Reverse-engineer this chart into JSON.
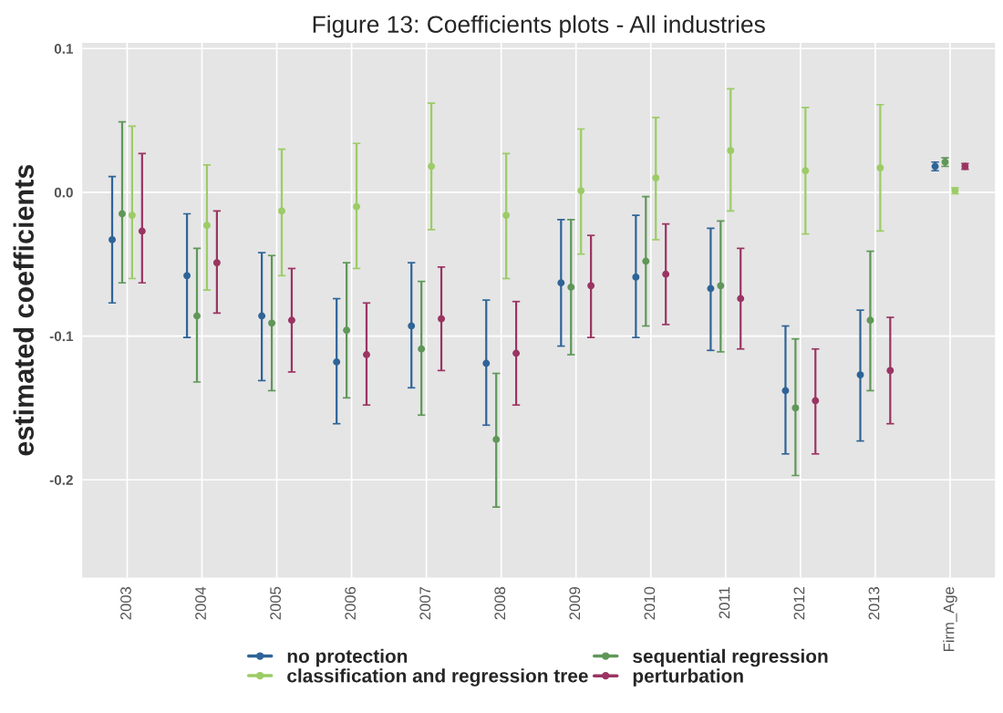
{
  "chart_data": {
    "type": "scatter",
    "title": "Figure 13: Coefficients plots - All industries",
    "ylabel": "estimated coefficients",
    "categories": [
      "2003",
      "2004",
      "2005",
      "2006",
      "2007",
      "2008",
      "2009",
      "2010",
      "2011",
      "2012",
      "2013",
      "Firm_Age"
    ],
    "series": [
      {
        "name": "no protection",
        "color": "#2f6497",
        "values": [
          -0.033,
          -0.058,
          -0.086,
          -0.118,
          -0.093,
          -0.119,
          -0.063,
          -0.059,
          -0.067,
          -0.138,
          -0.127,
          0.018
        ],
        "errors": [
          [
            -0.077,
            0.011
          ],
          [
            -0.101,
            -0.015
          ],
          [
            -0.131,
            -0.042
          ],
          [
            -0.161,
            -0.074
          ],
          [
            -0.136,
            -0.049
          ],
          [
            -0.162,
            -0.075
          ],
          [
            -0.107,
            -0.019
          ],
          [
            -0.101,
            -0.016
          ],
          [
            -0.11,
            -0.025
          ],
          [
            -0.182,
            -0.093
          ],
          [
            -0.173,
            -0.082
          ],
          [
            0.015,
            0.021
          ]
        ]
      },
      {
        "name": "sequential regression",
        "color": "#5f9758",
        "values": [
          -0.015,
          -0.086,
          -0.091,
          -0.096,
          -0.109,
          -0.172,
          -0.066,
          -0.048,
          -0.065,
          -0.15,
          -0.089,
          0.021
        ],
        "errors": [
          [
            -0.063,
            0.049
          ],
          [
            -0.132,
            -0.039
          ],
          [
            -0.138,
            -0.044
          ],
          [
            -0.143,
            -0.049
          ],
          [
            -0.155,
            -0.062
          ],
          [
            -0.219,
            -0.126
          ],
          [
            -0.113,
            -0.019
          ],
          [
            -0.093,
            -0.003
          ],
          [
            -0.111,
            -0.02
          ],
          [
            -0.197,
            -0.102
          ],
          [
            -0.138,
            -0.041
          ],
          [
            0.018,
            0.024
          ]
        ]
      },
      {
        "name": "classification and regression tree",
        "color": "#9ccc66",
        "values": [
          -0.016,
          -0.023,
          -0.013,
          -0.01,
          0.018,
          -0.016,
          0.001,
          0.01,
          0.029,
          0.015,
          0.017,
          0.001
        ],
        "errors": [
          [
            -0.06,
            0.046
          ],
          [
            -0.068,
            0.019
          ],
          [
            -0.058,
            0.03
          ],
          [
            -0.053,
            0.034
          ],
          [
            -0.026,
            0.062
          ],
          [
            -0.06,
            0.027
          ],
          [
            -0.043,
            0.044
          ],
          [
            -0.033,
            0.052
          ],
          [
            -0.013,
            0.072
          ],
          [
            -0.029,
            0.059
          ],
          [
            -0.027,
            0.061
          ],
          [
            -0.001,
            0.003
          ]
        ]
      },
      {
        "name": "perturbation",
        "color": "#9a3463",
        "values": [
          -0.027,
          -0.049,
          -0.089,
          -0.113,
          -0.088,
          -0.112,
          -0.065,
          -0.057,
          -0.074,
          -0.145,
          -0.124,
          0.018
        ],
        "errors": [
          [
            -0.063,
            0.027
          ],
          [
            -0.084,
            -0.013
          ],
          [
            -0.125,
            -0.053
          ],
          [
            -0.148,
            -0.077
          ],
          [
            -0.124,
            -0.052
          ],
          [
            -0.148,
            -0.076
          ],
          [
            -0.101,
            -0.03
          ],
          [
            -0.092,
            -0.022
          ],
          [
            -0.109,
            -0.039
          ],
          [
            -0.182,
            -0.109
          ],
          [
            -0.161,
            -0.087
          ],
          [
            0.016,
            0.02
          ]
        ]
      }
    ],
    "ylim": [
      -0.268,
      0.104
    ],
    "yticks": [
      0.1,
      {
        "value": 0,
        "label": "0.0"
      },
      {
        "value": -0.1,
        "label": "-0.1"
      },
      {
        "value": -0.2,
        "label": "-0.2"
      }
    ],
    "grid": true,
    "legend": "bottom",
    "marker": "circle"
  }
}
